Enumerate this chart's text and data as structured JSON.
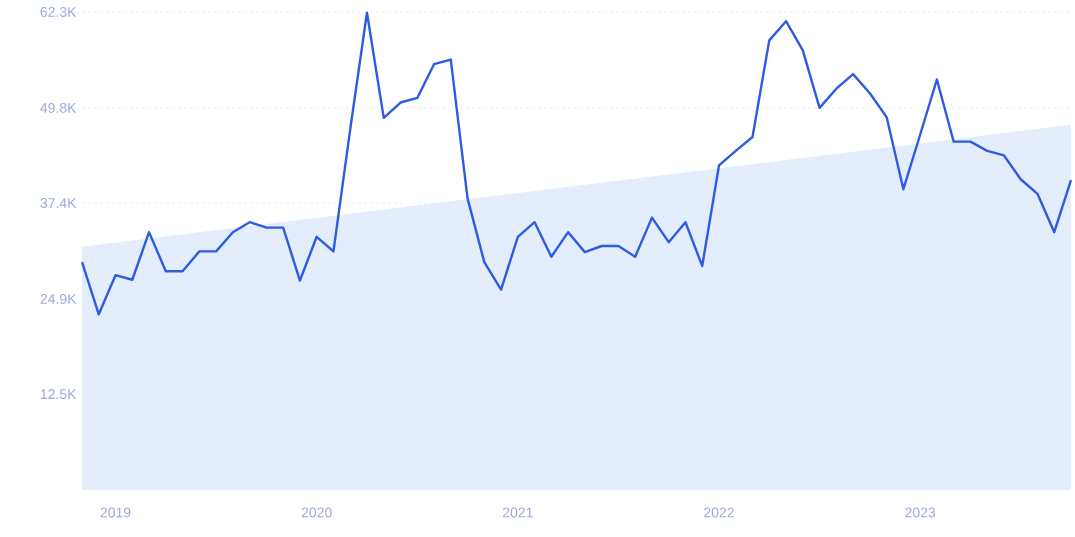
{
  "chart_data": {
    "type": "line",
    "x": [
      "2018-11",
      "2018-12",
      "2019-01",
      "2019-02",
      "2019-03",
      "2019-04",
      "2019-05",
      "2019-06",
      "2019-07",
      "2019-08",
      "2019-09",
      "2019-10",
      "2019-11",
      "2019-12",
      "2020-01",
      "2020-02",
      "2020-03",
      "2020-04",
      "2020-05",
      "2020-06",
      "2020-07",
      "2020-08",
      "2020-09",
      "2020-10",
      "2020-11",
      "2020-12",
      "2021-01",
      "2021-02",
      "2021-03",
      "2021-04",
      "2021-05",
      "2021-06",
      "2021-07",
      "2021-08",
      "2021-09",
      "2021-10",
      "2021-11",
      "2021-12",
      "2022-01",
      "2022-02",
      "2022-03",
      "2022-04",
      "2022-05",
      "2022-06",
      "2022-07",
      "2022-08",
      "2022-09",
      "2022-10",
      "2022-11",
      "2022-12",
      "2023-01",
      "2023-02",
      "2023-03",
      "2023-04",
      "2023-05",
      "2023-06",
      "2023-07",
      "2023-08",
      "2023-09",
      "2023-10"
    ],
    "series": [
      {
        "type": "area",
        "color": "#e3edfb",
        "x": [
          "2018-11",
          "2023-10"
        ],
        "values": [
          31700,
          47600
        ]
      },
      {
        "color": "#2d5be3",
        "values": [
          29700,
          22900,
          28000,
          27400,
          33600,
          28500,
          28500,
          31100,
          31100,
          33600,
          34900,
          34200,
          34200,
          27300,
          33000,
          31100,
          47000,
          62200,
          48500,
          50500,
          51100,
          55500,
          56100,
          38000,
          29700,
          26100,
          33000,
          34900,
          30400,
          33600,
          31000,
          31800,
          31800,
          30400,
          35500,
          32300,
          34900,
          29200,
          42300,
          44200,
          46000,
          58600,
          61100,
          57300,
          49800,
          52300,
          54200,
          51700,
          48600,
          39200,
          46300,
          53500,
          45400,
          45400,
          44200,
          43600,
          40500,
          38600,
          33600,
          40400
        ]
      }
    ],
    "xlim": [
      "2018-11",
      "2023-10"
    ],
    "xticks": [
      {
        "value": "2019-01",
        "label": "2019"
      },
      {
        "value": "2020-01",
        "label": "2020"
      },
      {
        "value": "2021-01",
        "label": "2021"
      },
      {
        "value": "2022-01",
        "label": "2022"
      },
      {
        "value": "2023-01",
        "label": "2023"
      }
    ],
    "ylim": [
      0,
      62300
    ],
    "yticks": [
      {
        "value": 12500,
        "label": "12.5K"
      },
      {
        "value": 24900,
        "label": "24.9K"
      },
      {
        "value": 37400,
        "label": "37.4K"
      },
      {
        "value": 49800,
        "label": "49.8K"
      },
      {
        "value": 62300,
        "label": "62.3K"
      }
    ],
    "grid": "y"
  }
}
